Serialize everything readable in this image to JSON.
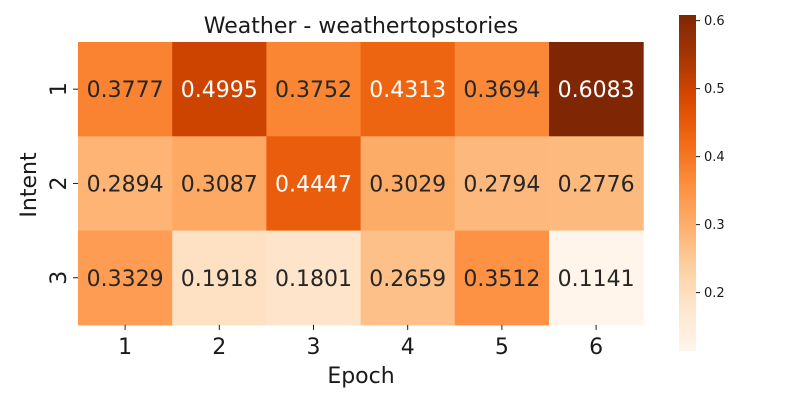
{
  "chart_data": {
    "type": "heatmap",
    "title": "Weather - weathertopstories",
    "xlabel": "Epoch",
    "ylabel": "Intent",
    "x_categories": [
      "1",
      "2",
      "3",
      "4",
      "5",
      "6"
    ],
    "y_categories": [
      "1",
      "2",
      "3"
    ],
    "values": [
      [
        0.3777,
        0.4995,
        0.3752,
        0.4313,
        0.3694,
        0.6083
      ],
      [
        0.2894,
        0.3087,
        0.4447,
        0.3029,
        0.2794,
        0.2776
      ],
      [
        0.3329,
        0.1918,
        0.1801,
        0.2659,
        0.3512,
        0.1141
      ]
    ],
    "value_labels": [
      [
        "0.3777",
        "0.4995",
        "0.3752",
        "0.4313",
        "0.3694",
        "0.6083"
      ],
      [
        "0.2894",
        "0.3087",
        "0.4447",
        "0.3029",
        "0.2794",
        "0.2776"
      ],
      [
        "0.3329",
        "0.1918",
        "0.1801",
        "0.2659",
        "0.3512",
        "0.1141"
      ]
    ],
    "colorbar": {
      "min": 0.1141,
      "max": 0.6083,
      "ticks": [
        0.2,
        0.3,
        0.4,
        0.5,
        0.6
      ],
      "tick_labels": [
        "0.2",
        "0.3",
        "0.4",
        "0.5",
        "0.6"
      ],
      "colormap": "Oranges",
      "colormap_stops": [
        "#fff5eb",
        "#fee6ce",
        "#fdd0a2",
        "#fdae6b",
        "#fd8d3c",
        "#f16913",
        "#d94801",
        "#a63603",
        "#7f2704"
      ]
    }
  }
}
